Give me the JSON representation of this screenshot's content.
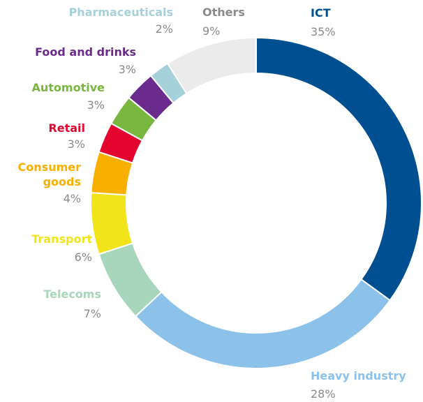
{
  "chart_data": {
    "type": "donut",
    "categories": [
      "ICT",
      "Heavy industry",
      "Telecoms",
      "Transport",
      "Consumer goods",
      "Retail",
      "Automotive",
      "Food and drinks",
      "Pharmaceuticals",
      "Others"
    ],
    "values": [
      35,
      28,
      7,
      6,
      4,
      3,
      3,
      3,
      2,
      9
    ],
    "value_labels": [
      "35%",
      "28%",
      "7%",
      "6%",
      "4%",
      "3%",
      "3%",
      "3%",
      "2%",
      "9%"
    ],
    "colors": [
      "#004f91",
      "#8cc1ea",
      "#a8d6bb",
      "#f2e41b",
      "#f8b000",
      "#e3052f",
      "#79b63f",
      "#6a2b8c",
      "#a6d0da",
      "#ebebeb"
    ],
    "label_colors": [
      "#004f91",
      "#8cc1ea",
      "#a8d6bb",
      "#f2e41b",
      "#f8b000",
      "#e3052f",
      "#79b63f",
      "#6a2b8c",
      "#a6d0da",
      "#8a8a8a"
    ]
  }
}
